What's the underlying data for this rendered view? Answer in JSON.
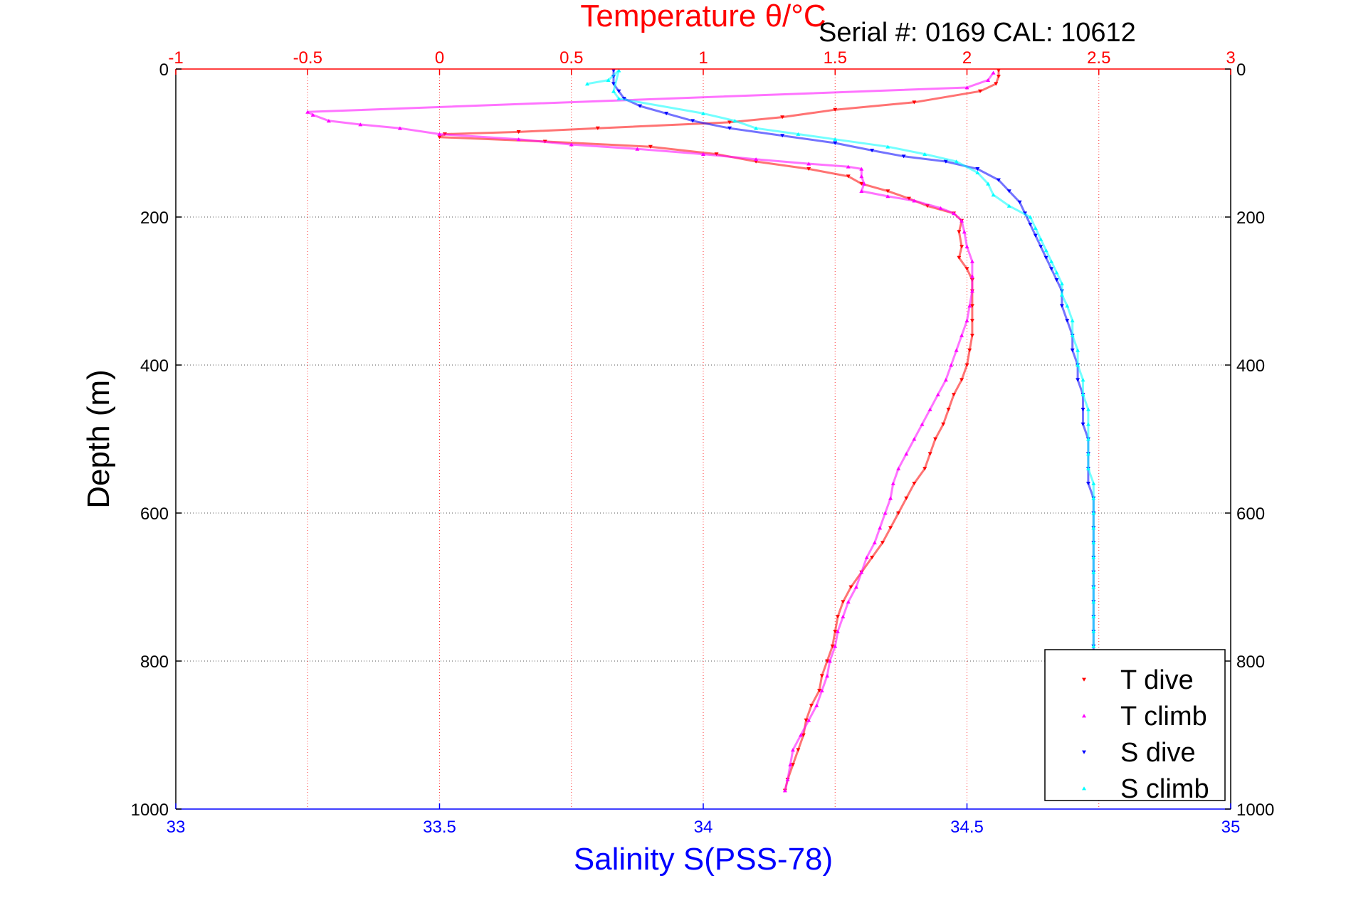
{
  "chart_data": {
    "type": "scatter",
    "title": "Temperature θ/°C",
    "annotation": "Serial #: 0169 CAL: 10612",
    "xlabel": "Salinity S(PSS-78)",
    "ylabel": "Depth (m)",
    "x_top_label": "Temperature θ/°C",
    "x_bottom": {
      "range": [
        33,
        35
      ],
      "ticks": [
        33,
        33.5,
        34,
        34.5,
        35
      ],
      "tick_labels": [
        "33",
        "33.5",
        "34",
        "34.5",
        "35"
      ],
      "color": "#0000ff"
    },
    "x_top": {
      "range": [
        -1,
        3
      ],
      "ticks": [
        -1,
        -0.5,
        0,
        0.5,
        1,
        1.5,
        2,
        2.5,
        3
      ],
      "tick_labels": [
        "-1",
        "-0.5",
        "0",
        "0.5",
        "1",
        "1.5",
        "2",
        "2.5",
        "3"
      ],
      "color": "#ff0000"
    },
    "y_axis": {
      "range": [
        0,
        1000
      ],
      "reversed": true,
      "ticks": [
        0,
        200,
        400,
        600,
        800,
        1000
      ],
      "tick_labels": [
        "0",
        "200",
        "400",
        "600",
        "800",
        "1000"
      ]
    },
    "grid": true,
    "legend_position": "bottom-right",
    "series": [
      {
        "name": "T dive",
        "axis": "top",
        "color": "#ff0000",
        "marker": "triangle-down",
        "points": [
          [
            2.12,
            2
          ],
          [
            2.12,
            10
          ],
          [
            2.11,
            20
          ],
          [
            2.05,
            30
          ],
          [
            1.8,
            45
          ],
          [
            1.5,
            55
          ],
          [
            1.3,
            65
          ],
          [
            1.1,
            72
          ],
          [
            0.6,
            80
          ],
          [
            0.3,
            85
          ],
          [
            0.02,
            88
          ],
          [
            0.0,
            92
          ],
          [
            0.4,
            98
          ],
          [
            0.8,
            105
          ],
          [
            1.05,
            115
          ],
          [
            1.2,
            125
          ],
          [
            1.4,
            135
          ],
          [
            1.55,
            145
          ],
          [
            1.6,
            155
          ],
          [
            1.7,
            165
          ],
          [
            1.78,
            175
          ],
          [
            1.85,
            185
          ],
          [
            1.95,
            195
          ],
          [
            1.98,
            205
          ],
          [
            1.97,
            220
          ],
          [
            1.98,
            240
          ],
          [
            1.97,
            255
          ],
          [
            2.0,
            270
          ],
          [
            2.02,
            285
          ],
          [
            2.02,
            300
          ],
          [
            2.02,
            320
          ],
          [
            2.02,
            340
          ],
          [
            2.02,
            360
          ],
          [
            2.01,
            380
          ],
          [
            2.0,
            400
          ],
          [
            1.98,
            420
          ],
          [
            1.95,
            440
          ],
          [
            1.93,
            460
          ],
          [
            1.91,
            480
          ],
          [
            1.88,
            500
          ],
          [
            1.86,
            520
          ],
          [
            1.84,
            540
          ],
          [
            1.8,
            560
          ],
          [
            1.77,
            580
          ],
          [
            1.74,
            600
          ],
          [
            1.71,
            620
          ],
          [
            1.68,
            640
          ],
          [
            1.64,
            660
          ],
          [
            1.6,
            680
          ],
          [
            1.56,
            700
          ],
          [
            1.53,
            720
          ],
          [
            1.51,
            740
          ],
          [
            1.5,
            760
          ],
          [
            1.49,
            780
          ],
          [
            1.47,
            800
          ],
          [
            1.45,
            820
          ],
          [
            1.44,
            840
          ],
          [
            1.41,
            860
          ],
          [
            1.39,
            880
          ],
          [
            1.38,
            900
          ],
          [
            1.36,
            920
          ],
          [
            1.34,
            940
          ],
          [
            1.32,
            960
          ],
          [
            1.31,
            975
          ]
        ]
      },
      {
        "name": "T climb",
        "axis": "top",
        "color": "#ff00ff",
        "marker": "triangle-up",
        "points": [
          [
            2.1,
            5
          ],
          [
            2.08,
            15
          ],
          [
            2.0,
            25
          ],
          [
            -0.5,
            58
          ],
          [
            -0.48,
            62
          ],
          [
            -0.42,
            70
          ],
          [
            -0.3,
            75
          ],
          [
            -0.15,
            80
          ],
          [
            0.0,
            88
          ],
          [
            0.3,
            95
          ],
          [
            0.5,
            102
          ],
          [
            0.75,
            108
          ],
          [
            1.0,
            115
          ],
          [
            1.2,
            122
          ],
          [
            1.4,
            128
          ],
          [
            1.55,
            132
          ],
          [
            1.6,
            135
          ],
          [
            1.6,
            145
          ],
          [
            1.61,
            155
          ],
          [
            1.6,
            165
          ],
          [
            1.7,
            172
          ],
          [
            1.8,
            178
          ],
          [
            1.9,
            188
          ],
          [
            1.95,
            195
          ],
          [
            1.98,
            205
          ],
          [
            1.99,
            220
          ],
          [
            2.0,
            240
          ],
          [
            2.02,
            260
          ],
          [
            2.02,
            280
          ],
          [
            2.02,
            300
          ],
          [
            2.01,
            320
          ],
          [
            2.0,
            340
          ],
          [
            1.98,
            360
          ],
          [
            1.96,
            380
          ],
          [
            1.94,
            400
          ],
          [
            1.92,
            420
          ],
          [
            1.89,
            440
          ],
          [
            1.86,
            460
          ],
          [
            1.83,
            480
          ],
          [
            1.8,
            500
          ],
          [
            1.77,
            520
          ],
          [
            1.74,
            540
          ],
          [
            1.72,
            560
          ],
          [
            1.71,
            580
          ],
          [
            1.69,
            600
          ],
          [
            1.67,
            620
          ],
          [
            1.65,
            640
          ],
          [
            1.62,
            660
          ],
          [
            1.6,
            680
          ],
          [
            1.58,
            700
          ],
          [
            1.55,
            720
          ],
          [
            1.53,
            740
          ],
          [
            1.51,
            760
          ],
          [
            1.5,
            780
          ],
          [
            1.48,
            800
          ],
          [
            1.47,
            820
          ],
          [
            1.45,
            840
          ],
          [
            1.43,
            860
          ],
          [
            1.4,
            880
          ],
          [
            1.37,
            900
          ],
          [
            1.34,
            920
          ],
          [
            1.33,
            940
          ],
          [
            1.32,
            960
          ],
          [
            1.31,
            975
          ]
        ]
      },
      {
        "name": "S dive",
        "axis": "bottom",
        "color": "#0000ff",
        "marker": "triangle-down",
        "points": [
          [
            33.83,
            2
          ],
          [
            33.83,
            10
          ],
          [
            33.83,
            20
          ],
          [
            33.84,
            30
          ],
          [
            33.85,
            40
          ],
          [
            33.88,
            50
          ],
          [
            33.93,
            60
          ],
          [
            33.98,
            70
          ],
          [
            34.05,
            80
          ],
          [
            34.15,
            90
          ],
          [
            34.25,
            100
          ],
          [
            34.32,
            110
          ],
          [
            34.38,
            118
          ],
          [
            34.46,
            125
          ],
          [
            34.52,
            135
          ],
          [
            34.56,
            150
          ],
          [
            34.58,
            165
          ],
          [
            34.6,
            180
          ],
          [
            34.61,
            195
          ],
          [
            34.62,
            210
          ],
          [
            34.63,
            225
          ],
          [
            34.64,
            240
          ],
          [
            34.65,
            255
          ],
          [
            34.66,
            270
          ],
          [
            34.67,
            285
          ],
          [
            34.68,
            300
          ],
          [
            34.68,
            320
          ],
          [
            34.69,
            340
          ],
          [
            34.7,
            360
          ],
          [
            34.7,
            380
          ],
          [
            34.71,
            400
          ],
          [
            34.71,
            420
          ],
          [
            34.72,
            440
          ],
          [
            34.72,
            460
          ],
          [
            34.72,
            480
          ],
          [
            34.73,
            500
          ],
          [
            34.73,
            520
          ],
          [
            34.73,
            540
          ],
          [
            34.73,
            560
          ],
          [
            34.74,
            580
          ],
          [
            34.74,
            600
          ],
          [
            34.74,
            620
          ],
          [
            34.74,
            640
          ],
          [
            34.74,
            660
          ],
          [
            34.74,
            680
          ],
          [
            34.74,
            700
          ],
          [
            34.74,
            720
          ],
          [
            34.74,
            740
          ],
          [
            34.74,
            760
          ],
          [
            34.74,
            780
          ],
          [
            34.74,
            790
          ]
        ]
      },
      {
        "name": "S climb",
        "axis": "bottom",
        "color": "#00ffff",
        "marker": "triangle-up",
        "points": [
          [
            33.78,
            20
          ],
          [
            33.82,
            15
          ],
          [
            33.84,
            2
          ],
          [
            33.83,
            30
          ],
          [
            33.84,
            40
          ],
          [
            34.0,
            60
          ],
          [
            34.06,
            70
          ],
          [
            34.1,
            80
          ],
          [
            34.18,
            88
          ],
          [
            34.25,
            95
          ],
          [
            34.35,
            105
          ],
          [
            34.42,
            115
          ],
          [
            34.48,
            125
          ],
          [
            34.52,
            140
          ],
          [
            34.54,
            155
          ],
          [
            34.55,
            170
          ],
          [
            34.58,
            185
          ],
          [
            34.62,
            200
          ],
          [
            34.63,
            215
          ],
          [
            34.64,
            230
          ],
          [
            34.65,
            245
          ],
          [
            34.66,
            260
          ],
          [
            34.67,
            275
          ],
          [
            34.68,
            290
          ],
          [
            34.68,
            305
          ],
          [
            34.69,
            320
          ],
          [
            34.7,
            340
          ],
          [
            34.7,
            360
          ],
          [
            34.71,
            380
          ],
          [
            34.71,
            400
          ],
          [
            34.72,
            420
          ],
          [
            34.72,
            440
          ],
          [
            34.73,
            460
          ],
          [
            34.73,
            480
          ],
          [
            34.73,
            500
          ],
          [
            34.73,
            520
          ],
          [
            34.73,
            540
          ],
          [
            34.74,
            560
          ],
          [
            34.74,
            580
          ],
          [
            34.74,
            600
          ],
          [
            34.74,
            620
          ],
          [
            34.74,
            640
          ],
          [
            34.74,
            660
          ],
          [
            34.74,
            680
          ],
          [
            34.74,
            700
          ],
          [
            34.74,
            720
          ],
          [
            34.74,
            740
          ],
          [
            34.74,
            760
          ],
          [
            34.74,
            780
          ]
        ]
      }
    ]
  }
}
